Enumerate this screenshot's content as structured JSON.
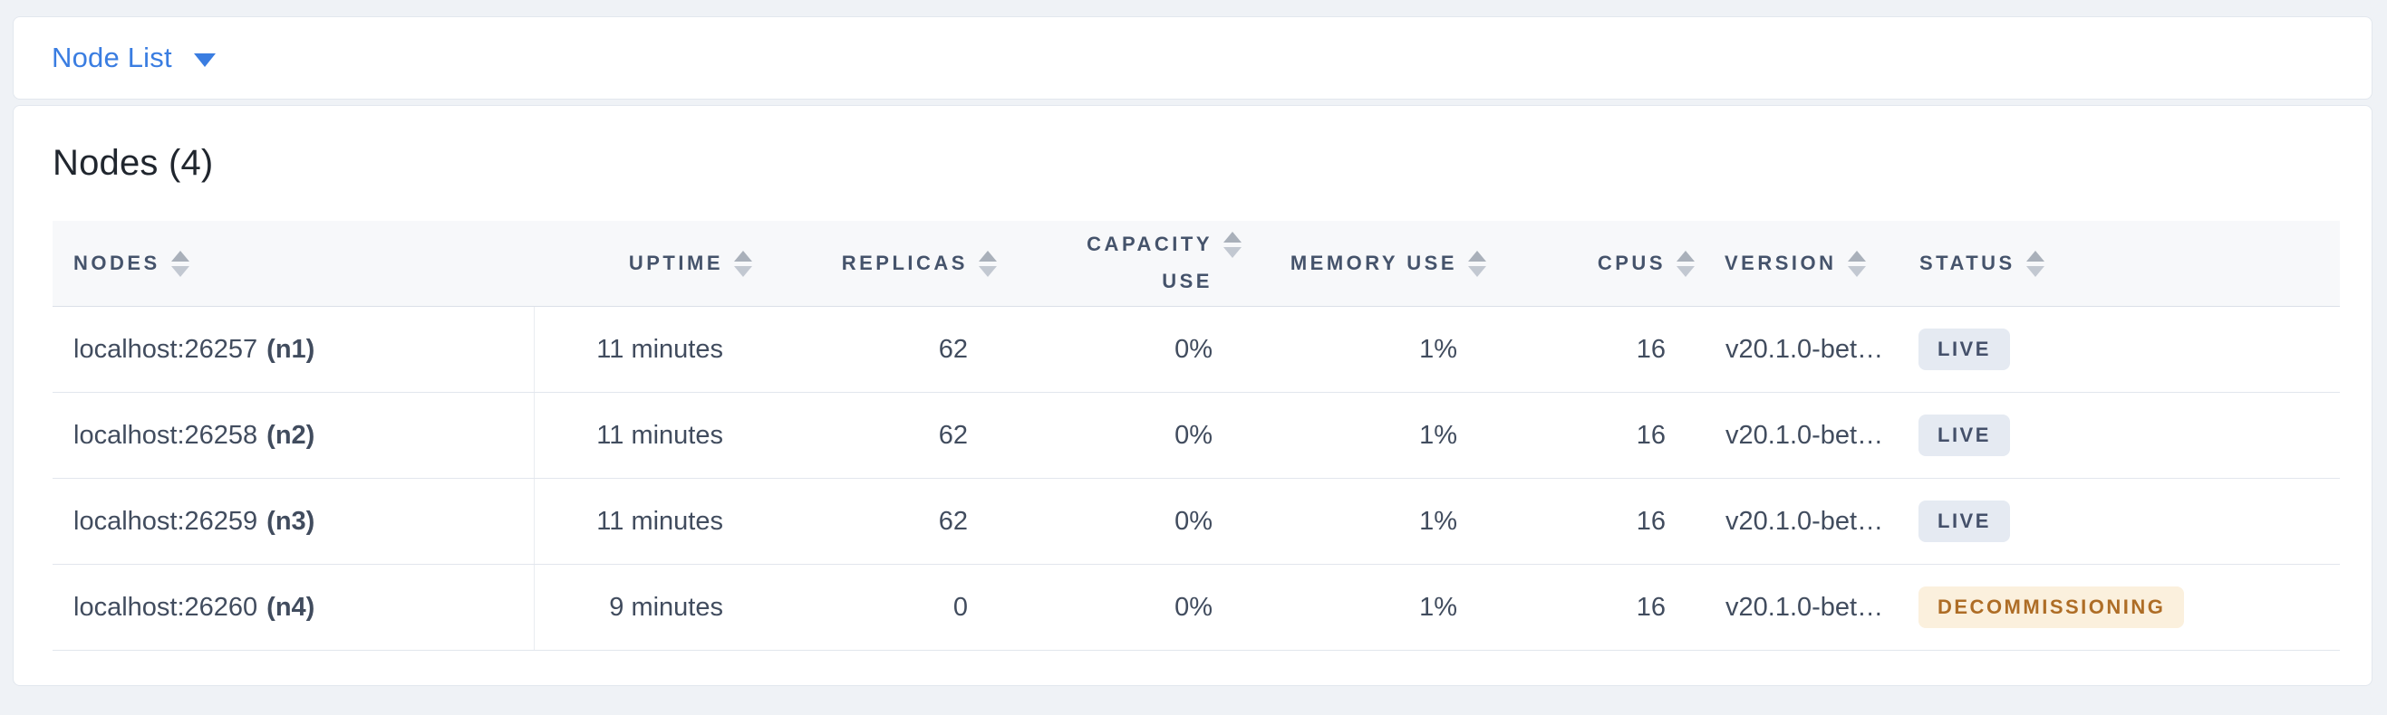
{
  "selector": {
    "label": "Node List"
  },
  "table": {
    "title": "Nodes (4)",
    "columns": [
      {
        "key": "nodes",
        "label": "NODES",
        "align": "left"
      },
      {
        "key": "uptime",
        "label": "UPTIME",
        "align": "right"
      },
      {
        "key": "replicas",
        "label": "REPLICAS",
        "align": "right"
      },
      {
        "key": "capacity_use",
        "label": "CAPACITY USE",
        "align": "right"
      },
      {
        "key": "memory_use",
        "label": "MEMORY USE",
        "align": "right"
      },
      {
        "key": "cpus",
        "label": "CPUS",
        "align": "right"
      },
      {
        "key": "version",
        "label": "VERSION",
        "align": "left"
      },
      {
        "key": "status",
        "label": "STATUS",
        "align": "left"
      }
    ],
    "rows": [
      {
        "address": "localhost:26257",
        "node_id": "(n1)",
        "uptime": "11 minutes",
        "replicas": "62",
        "capacity_use": "0%",
        "memory_use": "1%",
        "cpus": "16",
        "version": "v20.1.0-bet…",
        "status": "LIVE",
        "status_type": "live"
      },
      {
        "address": "localhost:26258",
        "node_id": "(n2)",
        "uptime": "11 minutes",
        "replicas": "62",
        "capacity_use": "0%",
        "memory_use": "1%",
        "cpus": "16",
        "version": "v20.1.0-bet…",
        "status": "LIVE",
        "status_type": "live"
      },
      {
        "address": "localhost:26259",
        "node_id": "(n3)",
        "uptime": "11 minutes",
        "replicas": "62",
        "capacity_use": "0%",
        "memory_use": "1%",
        "cpus": "16",
        "version": "v20.1.0-bet…",
        "status": "LIVE",
        "status_type": "live"
      },
      {
        "address": "localhost:26260",
        "node_id": "(n4)",
        "uptime": "9 minutes",
        "replicas": "0",
        "capacity_use": "0%",
        "memory_use": "1%",
        "cpus": "16",
        "version": "v20.1.0-bet…",
        "status": "DECOMMISSIONING",
        "status_type": "decommissioning"
      }
    ]
  },
  "colors": {
    "accent_blue": "#3a7de1",
    "live_bg": "#e5eaf2",
    "live_text": "#44506a",
    "decommissioning_bg": "#fbf0dd",
    "decommissioning_text": "#ae6d26"
  }
}
